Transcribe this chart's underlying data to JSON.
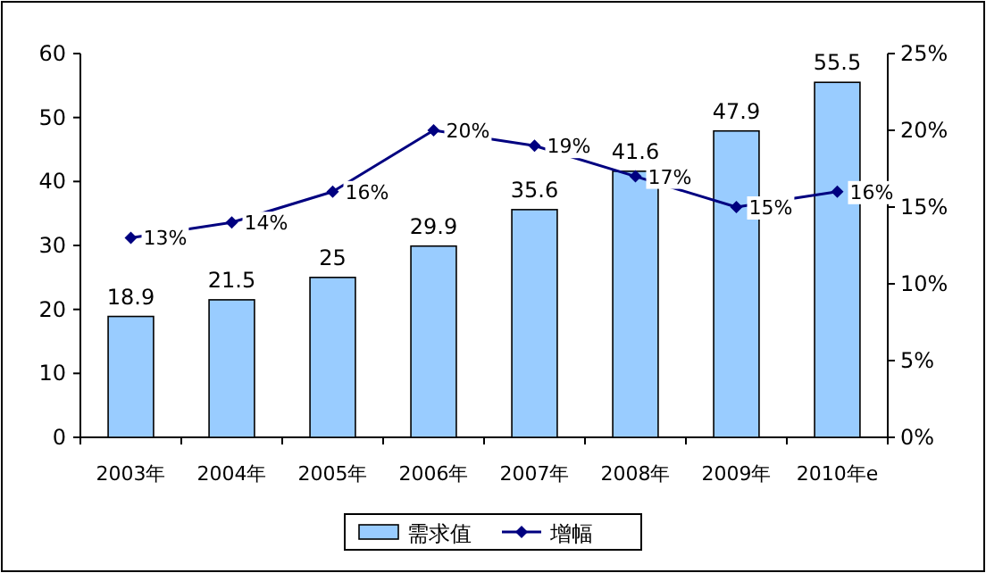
{
  "chart_data": {
    "type": "bar",
    "categories": [
      "2003年",
      "2004年",
      "2005年",
      "2006年",
      "2007年",
      "2008年",
      "2009年",
      "2010年e"
    ],
    "series": [
      {
        "name": "需求值",
        "color": "#99ccff",
        "values": [
          18.9,
          21.5,
          25,
          29.9,
          35.6,
          41.6,
          47.9,
          55.5
        ],
        "value_labels": [
          "18.9",
          "21.5",
          "25",
          "29.9",
          "35.6",
          "41.6",
          "47.9",
          "55.5"
        ]
      },
      {
        "name": "增幅",
        "type": "line",
        "axis": "y2",
        "color": "#000080",
        "marker": "diamond",
        "values": [
          13,
          14,
          16,
          20,
          19,
          17,
          15,
          16
        ],
        "value_labels": [
          "13%",
          "14%",
          "16%",
          "20%",
          "19%",
          "17%",
          "15%",
          "16%"
        ]
      }
    ],
    "ylim": [
      0,
      60
    ],
    "yticks": [
      0,
      10,
      20,
      30,
      40,
      50,
      60
    ],
    "y2lim": [
      0,
      25
    ],
    "y2ticks": [
      {
        "value": 0,
        "label": "0%"
      },
      {
        "value": 5,
        "label": "5%"
      },
      {
        "value": 10,
        "label": "10%"
      },
      {
        "value": 15,
        "label": "15%"
      },
      {
        "value": 20,
        "label": "20%"
      },
      {
        "value": 25,
        "label": "25%"
      }
    ],
    "legend": "bottom",
    "grid": false
  }
}
